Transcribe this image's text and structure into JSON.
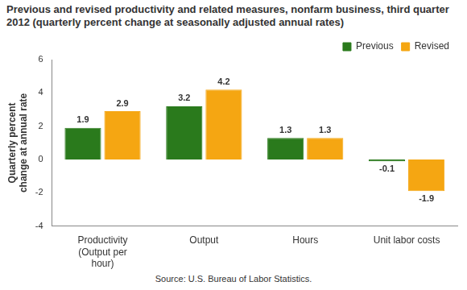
{
  "chart_data": {
    "type": "bar",
    "title": "Previous and revised productivity and related measures, nonfarm business, third quarter 2012 (quarterly percent change at seasonally adjusted annual rates)",
    "y_label": "Quarterly percent change at annual rate",
    "source": "Source: U.S. Bureau of Labor Statistics.",
    "categories": [
      "Productivity (Output per hour)",
      "Output",
      "Hours",
      "Unit labor costs"
    ],
    "series": [
      {
        "name": "Previous",
        "color": "#2a7a1c",
        "values": [
          1.9,
          3.2,
          1.3,
          -0.1
        ]
      },
      {
        "name": "Revised",
        "color": "#f5a612",
        "values": [
          2.9,
          4.2,
          1.3,
          -1.9
        ]
      }
    ],
    "ylim": [
      -4,
      6
    ],
    "yticks": [
      -4,
      -2,
      0,
      2,
      4,
      6
    ],
    "grid": false,
    "legend": "top-right",
    "data_labels": true
  }
}
